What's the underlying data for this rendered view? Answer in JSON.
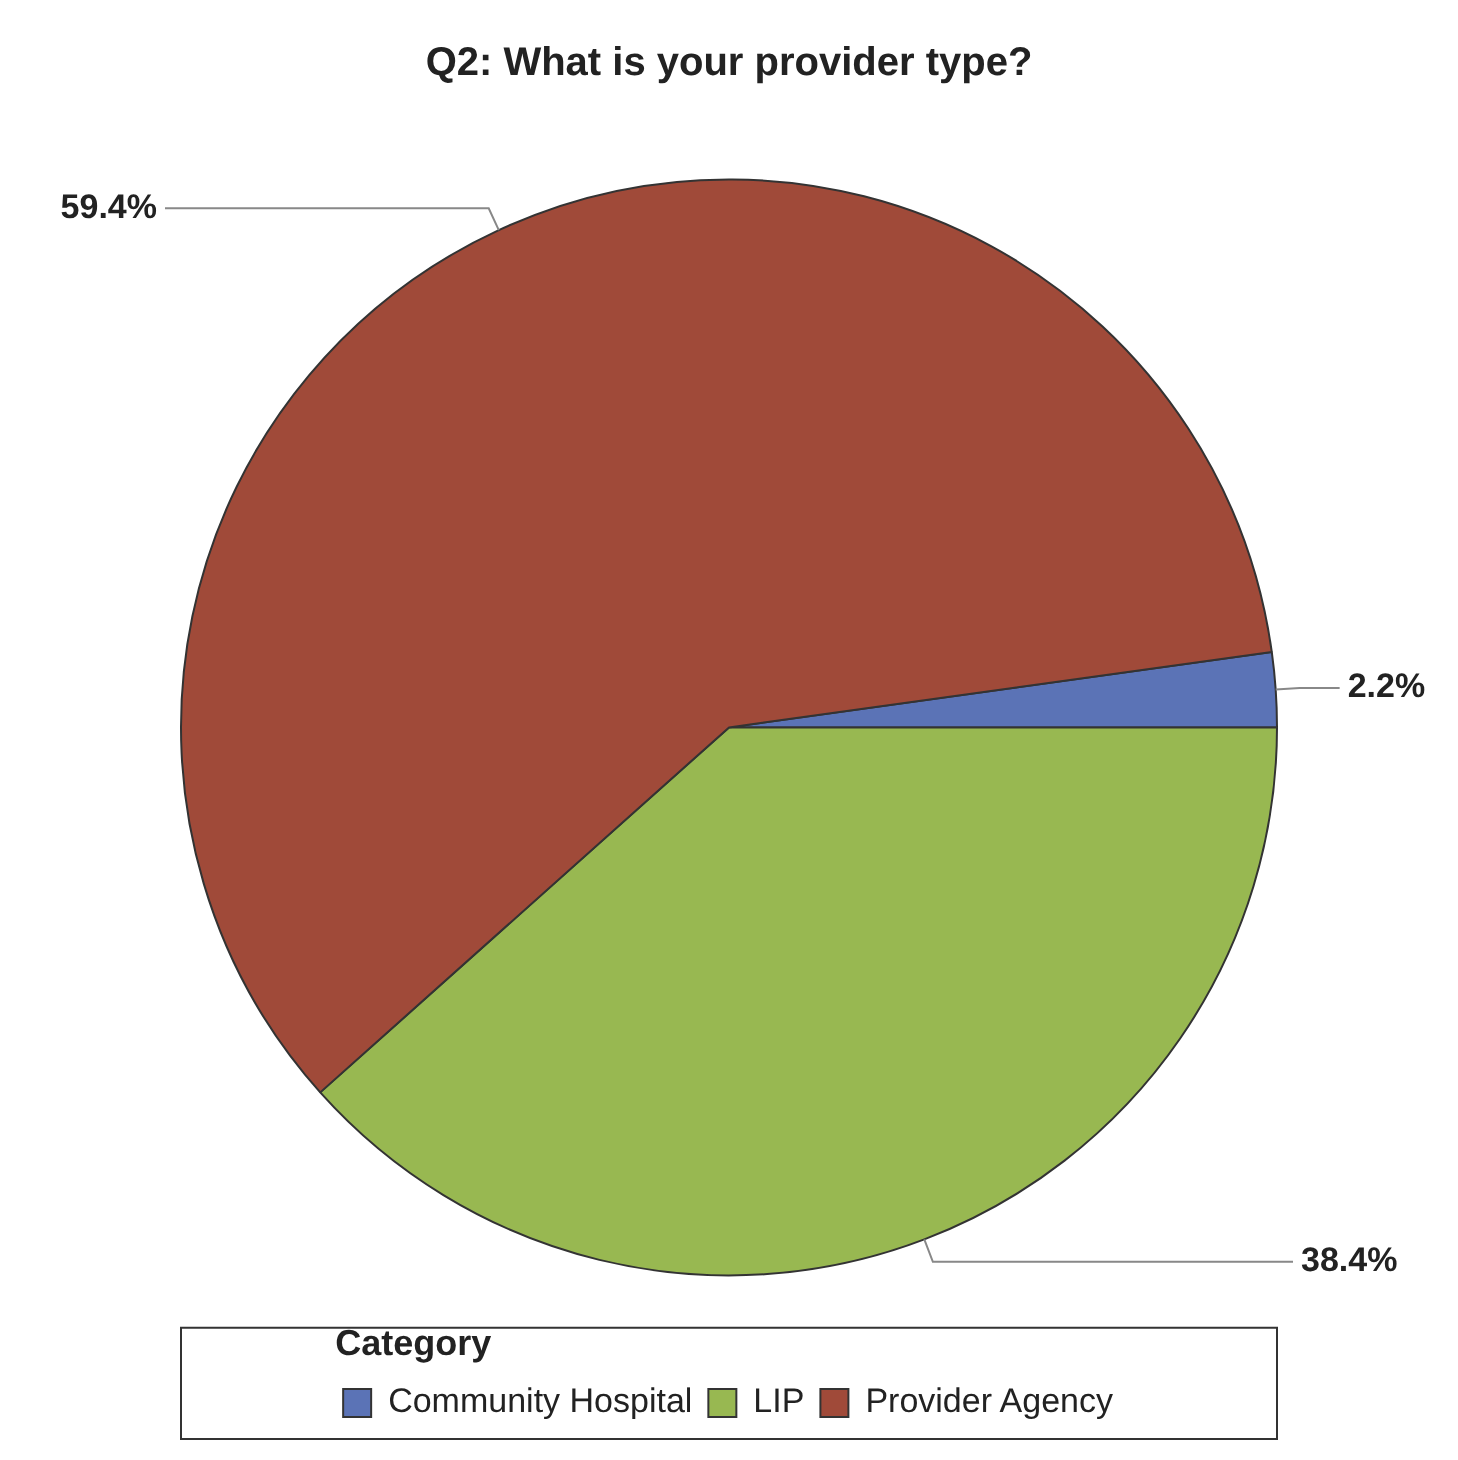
{
  "chart_data": {
    "type": "pie",
    "title": "Q2: What is your provider type?",
    "legend_title": "Category",
    "legend": "bottom",
    "categories": [
      "Community Hospital",
      "LIP",
      "Provider Agency"
    ],
    "values": [
      2.2,
      38.4,
      59.4
    ],
    "colors": [
      "#5b73b6",
      "#98b851",
      "#a04a39"
    ],
    "value_labels": [
      "2.2%",
      "38.4%",
      "59.4%"
    ]
  }
}
